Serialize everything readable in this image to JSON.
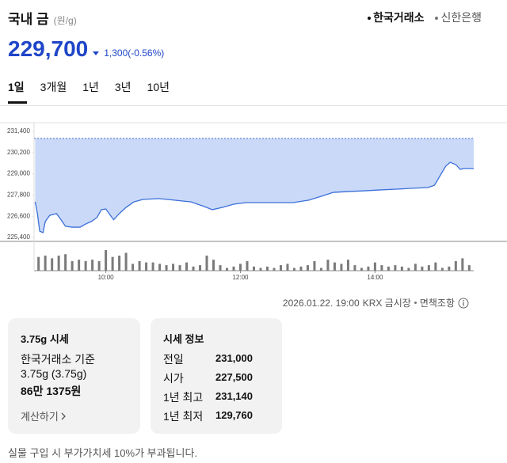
{
  "header": {
    "title": "국내 금",
    "unit": "(원/g)",
    "sources": [
      "한국거래소",
      "신한은행"
    ]
  },
  "price": {
    "value": "229,700",
    "change": "1,300",
    "change_rate": "(-0.56%)"
  },
  "periods": [
    "1일",
    "3개월",
    "1년",
    "3년",
    "10년"
  ],
  "chart_data": {
    "type": "area",
    "x": [
      537,
      539,
      541,
      544,
      546,
      550,
      556,
      560,
      564,
      570,
      577,
      582,
      587,
      592,
      596,
      600,
      604,
      607,
      612,
      618,
      625,
      633,
      647,
      661,
      676,
      686,
      695,
      704,
      714,
      725,
      739,
      753,
      767,
      781,
      792,
      803,
      817,
      831,
      845,
      859,
      873,
      887,
      893,
      898,
      903,
      907,
      912,
      916,
      919,
      928
    ],
    "series": [
      {
        "color": "#3b6fd9",
        "fill": "#c9d9f7",
        "values": [
          227414,
          226743,
          225757,
          225670,
          226300,
          226650,
          226750,
          226400,
          226030,
          225980,
          225980,
          226160,
          226300,
          226520,
          226970,
          227010,
          226650,
          226400,
          226750,
          227100,
          227410,
          227550,
          227600,
          227510,
          227410,
          227190,
          226970,
          227100,
          227280,
          227370,
          227370,
          227370,
          227370,
          227510,
          227730,
          227950,
          228000,
          228040,
          228090,
          228130,
          228180,
          228220,
          228350,
          228890,
          229430,
          229650,
          229520,
          229250,
          229300,
          229300
        ]
      }
    ],
    "reference_line": {
      "value": 231000,
      "color": "#4a6fd0"
    },
    "xlim": [
      536,
      928
    ],
    "ylim": [
      225400,
      231400
    ],
    "xticks": [
      {
        "value": 600,
        "label": "10:00"
      },
      {
        "value": 720,
        "label": "12:00"
      },
      {
        "value": 840,
        "label": "14:00"
      }
    ],
    "yticks": [
      {
        "value": 225400,
        "label": "225,400"
      },
      {
        "value": 226600,
        "label": "226,600"
      },
      {
        "value": 227800,
        "label": "227,800"
      },
      {
        "value": 229000,
        "label": "229,000"
      },
      {
        "value": 230200,
        "label": "230,200"
      },
      {
        "value": 231400,
        "label": "231,400"
      }
    ],
    "grid": false,
    "volume": {
      "color": "#7a7a7a",
      "ylim": [
        0,
        30
      ],
      "x": [
        540,
        546,
        552,
        558,
        564,
        570,
        576,
        582,
        588,
        594,
        600,
        606,
        612,
        618,
        624,
        630,
        636,
        642,
        648,
        654,
        660,
        666,
        672,
        678,
        684,
        690,
        696,
        702,
        708,
        714,
        720,
        726,
        732,
        738,
        744,
        750,
        756,
        762,
        768,
        774,
        780,
        786,
        792,
        798,
        804,
        810,
        816,
        822,
        828,
        834,
        840,
        846,
        852,
        858,
        864,
        870,
        876,
        882,
        888,
        894,
        900,
        906,
        912,
        918,
        924
      ],
      "values": [
        20,
        22,
        18,
        22,
        24,
        14,
        16,
        14,
        16,
        14,
        30,
        20,
        22,
        26,
        10,
        14,
        12,
        12,
        10,
        8,
        10,
        8,
        12,
        6,
        8,
        22,
        16,
        8,
        4,
        6,
        10,
        14,
        6,
        4,
        6,
        4,
        8,
        10,
        4,
        6,
        8,
        14,
        4,
        16,
        12,
        10,
        16,
        8,
        4,
        6,
        12,
        8,
        6,
        8,
        6,
        4,
        10,
        6,
        8,
        12,
        4,
        6,
        14,
        18,
        8
      ]
    }
  },
  "note": {
    "timestamp": "2026.01.22. 19:00",
    "market": "KRX 금시장",
    "disclaimer": "면책조항"
  },
  "cards": [
    {
      "title": "3.75g 시세",
      "lines": [
        "한국거래소 기준",
        "3.75g (3.75g)",
        "86만 1375원"
      ],
      "link": "계산하기"
    },
    {
      "title": "시세 정보",
      "rows": [
        [
          "전일",
          "231,000"
        ],
        [
          "시가",
          "227,500"
        ],
        [
          "1년 최고",
          "231,140"
        ],
        [
          "1년 최저",
          "129,760"
        ]
      ]
    }
  ],
  "footnote": "실물 구입 시 부가가치세 10%가 부과됩니다."
}
